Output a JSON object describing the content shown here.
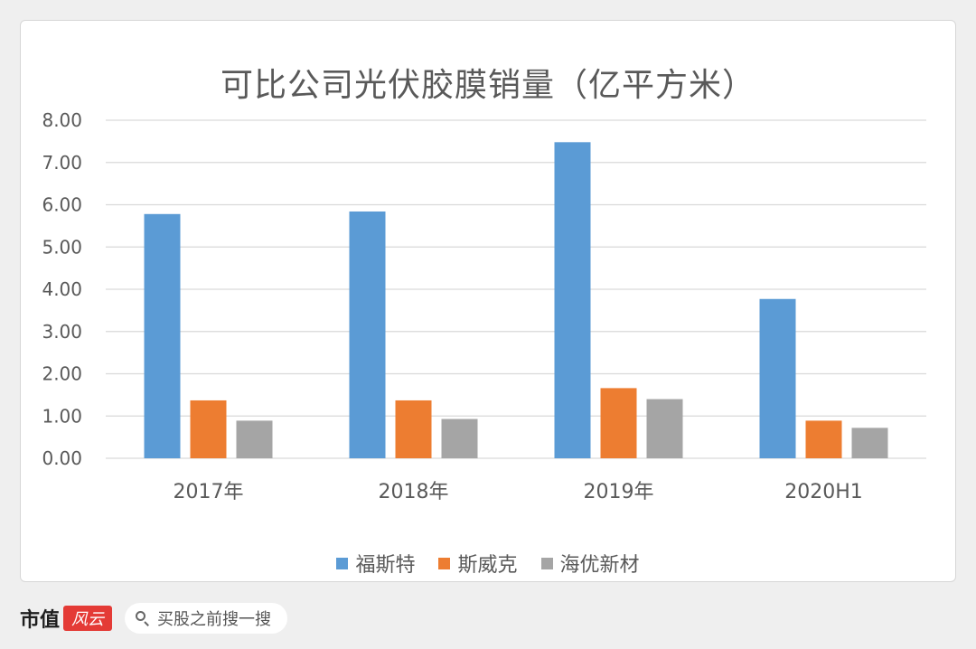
{
  "chart_data": {
    "type": "bar",
    "title": "可比公司光伏胶膜销量（亿平方米）",
    "categories": [
      "2017年",
      "2018年",
      "2019年",
      "2020H1"
    ],
    "series": [
      {
        "name": "福斯特",
        "color": "#5b9bd5",
        "values": [
          5.78,
          5.84,
          7.48,
          3.77
        ]
      },
      {
        "name": "斯威克",
        "color": "#ed7d31",
        "values": [
          1.37,
          1.37,
          1.66,
          0.89
        ]
      },
      {
        "name": "海优新材",
        "color": "#a5a5a5",
        "values": [
          0.89,
          0.93,
          1.4,
          0.72
        ]
      }
    ],
    "ylim": [
      0,
      8
    ],
    "yticks": [
      "0.00",
      "1.00",
      "2.00",
      "3.00",
      "4.00",
      "5.00",
      "6.00",
      "7.00",
      "8.00"
    ],
    "grid": true,
    "legend_position": "bottom"
  },
  "footer": {
    "brand": "市值",
    "brand_seal": "风云",
    "search_placeholder": "买股之前搜一搜"
  }
}
